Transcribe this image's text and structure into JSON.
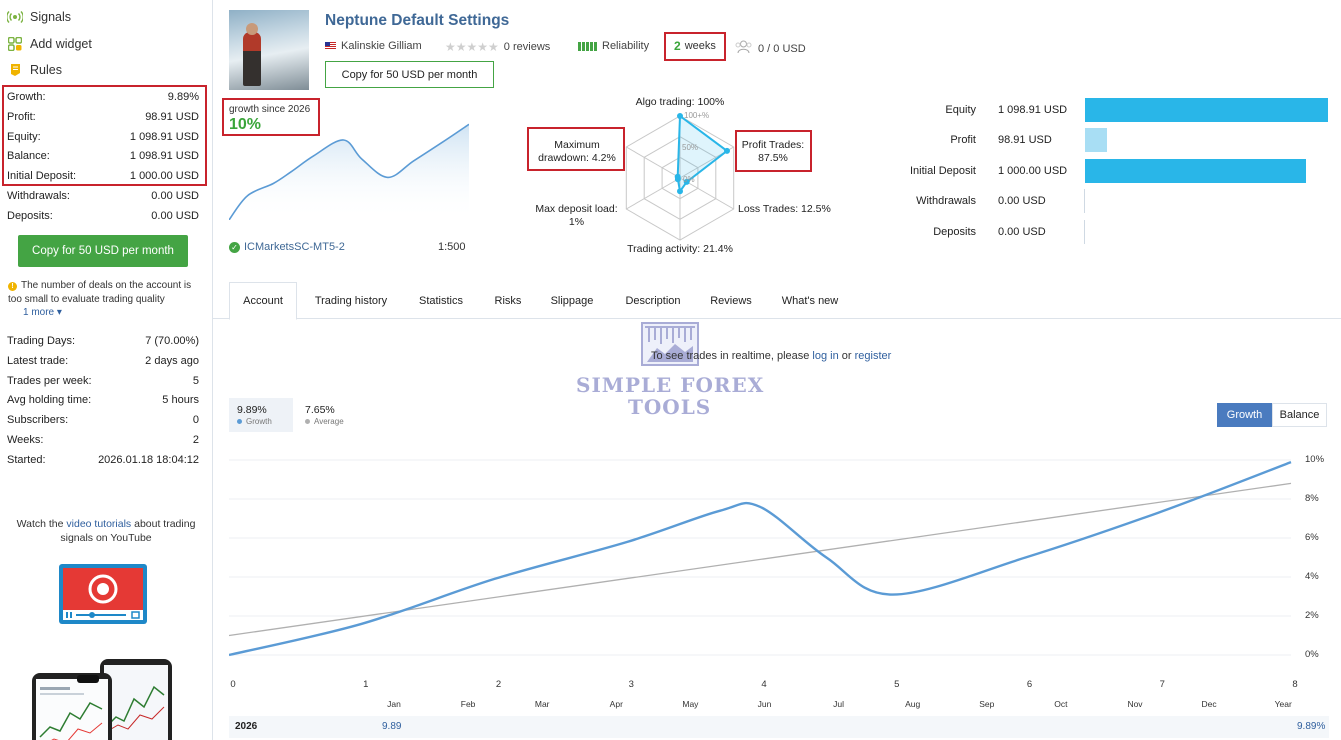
{
  "sidebar": {
    "nav": [
      {
        "label": "Signals",
        "icon": "signal-icon"
      },
      {
        "label": "Add widget",
        "icon": "widget-icon"
      },
      {
        "label": "Rules",
        "icon": "rules-icon"
      }
    ],
    "account_stats": [
      {
        "label": "Growth:",
        "value": "9.89%"
      },
      {
        "label": "Profit:",
        "value": "98.91 USD"
      },
      {
        "label": "Equity:",
        "value": "1 098.91 USD"
      },
      {
        "label": "Balance:",
        "value": "1 098.91 USD"
      },
      {
        "label": "Initial Deposit:",
        "value": "1 000.00 USD"
      }
    ],
    "flow_stats": [
      {
        "label": "Withdrawals:",
        "value": "0.00 USD"
      },
      {
        "label": "Deposits:",
        "value": "0.00 USD"
      }
    ],
    "copy_button": "Copy for 50 USD per month",
    "warning": "The number of deals on the account is too small to evaluate trading quality",
    "more_link": "1 more",
    "trade_stats": [
      {
        "label": "Trading Days:",
        "value": "7 (70.00%)"
      },
      {
        "label": "Latest trade:",
        "value": "2 days ago"
      },
      {
        "label": "Trades per week:",
        "value": "5"
      },
      {
        "label": "Avg holding time:",
        "value": "5 hours"
      },
      {
        "label": "Subscribers:",
        "value": "0"
      },
      {
        "label": "Weeks:",
        "value": "2"
      },
      {
        "label": "Started:",
        "value": "2026.01.18 18:04:12"
      }
    ],
    "video_text_before": "Watch the ",
    "video_link": "video tutorials",
    "video_text_after": " about trading signals on YouTube"
  },
  "header": {
    "title": "Neptune Default Settings",
    "author": "Kalinskie Gilliam",
    "reviews": "0 reviews",
    "reliability_label": "Reliability",
    "weeks_number": "2",
    "weeks_label": "weeks",
    "subscribers_funds": "0 / 0 USD",
    "copy_button": "Copy for 50 USD per month"
  },
  "growth_card": {
    "label": "growth since 2026",
    "value": "10%",
    "broker": "ICMarketsSC-MT5-2",
    "leverage": "1:500"
  },
  "radar": {
    "algo": "Algo trading: 100%",
    "profit_trades_1": "Profit Trades:",
    "profit_trades_2": "87.5%",
    "loss_trades": "Loss Trades: 12.5%",
    "activity": "Trading activity: 21.4%",
    "deposit_load_1": "Max deposit load:",
    "deposit_load_2": "1%",
    "drawdown_1": "Maximum",
    "drawdown_2": "drawdown: 4.2%",
    "ring_100": "100+%",
    "ring_50": "50%",
    "ring_0": "0%",
    "values": {
      "algo": 100,
      "profit_trades": 87.5,
      "loss_trades": 12.5,
      "activity": 21.4,
      "deposit_load": 1,
      "drawdown": 4.2
    }
  },
  "balance_bars": [
    {
      "label": "Equity",
      "value": "1 098.91 USD",
      "amount": 1098.91,
      "color": "#29b6e8"
    },
    {
      "label": "Profit",
      "value": "98.91 USD",
      "amount": 98.91,
      "color": "#a8def4"
    },
    {
      "label": "Initial Deposit",
      "value": "1 000.00 USD",
      "amount": 1000.0,
      "color": "#29b6e8"
    },
    {
      "label": "Withdrawals",
      "value": "0.00 USD",
      "amount": 0,
      "color": "#29b6e8"
    },
    {
      "label": "Deposits",
      "value": "0.00 USD",
      "amount": 0,
      "color": "#29b6e8"
    }
  ],
  "tabs": [
    "Account",
    "Trading history",
    "Statistics",
    "Risks",
    "Slippage",
    "Description",
    "Reviews",
    "What's new"
  ],
  "realtime": {
    "prefix": "To see trades in realtime, please ",
    "login": "log in",
    "or": " or ",
    "register": "register"
  },
  "watermark": {
    "line1": "SIMPLE FOREX",
    "line2": "TOOLS"
  },
  "main_chart": {
    "legend_growth_value": "9.89%",
    "legend_growth_label": "Growth",
    "legend_avg_value": "7.65%",
    "legend_avg_label": "Average",
    "btn_growth": "Growth",
    "btn_balance": "Balance",
    "footer_year": "2026",
    "footer_value_left": "9.89",
    "footer_value_right": "9.89%",
    "colors": {
      "growth": "#5b9bd5",
      "average": "#b0b0b0",
      "active_btn": "#4a7bbf"
    }
  },
  "chart_data": {
    "type": "line",
    "x_ticks": [
      "0",
      "1",
      "2",
      "3",
      "4",
      "5",
      "6",
      "7",
      "8"
    ],
    "month_ticks": [
      "Jan",
      "Feb",
      "Mar",
      "Apr",
      "May",
      "Jun",
      "Jul",
      "Aug",
      "Sep",
      "Oct",
      "Nov",
      "Dec",
      "Year"
    ],
    "y_ticks": [
      "10%",
      "8%",
      "6%",
      "4%",
      "2%",
      "0%"
    ],
    "ylim": [
      0,
      10
    ],
    "xlim": [
      0,
      8
    ],
    "series": [
      {
        "name": "Growth",
        "x": [
          0,
          1,
          2,
          3,
          3.7,
          4,
          4.5,
          5,
          6,
          7,
          8
        ],
        "y": [
          0,
          1.6,
          3.9,
          5.8,
          7.4,
          7.6,
          5.0,
          3.1,
          5.0,
          7.3,
          9.89
        ]
      },
      {
        "name": "Average",
        "x": [
          0,
          8
        ],
        "y": [
          1.0,
          8.8
        ]
      }
    ],
    "mini_series": {
      "x": [
        0,
        0.5,
        1.2,
        1.7,
        2.3,
        3.1,
        3.6,
        4.3,
        5.0,
        5.8,
        6.5
      ],
      "y": [
        0,
        2.8,
        4.2,
        5.6,
        7.4,
        9.2,
        7.0,
        4.9,
        6.8,
        9.0,
        11.0
      ]
    }
  }
}
